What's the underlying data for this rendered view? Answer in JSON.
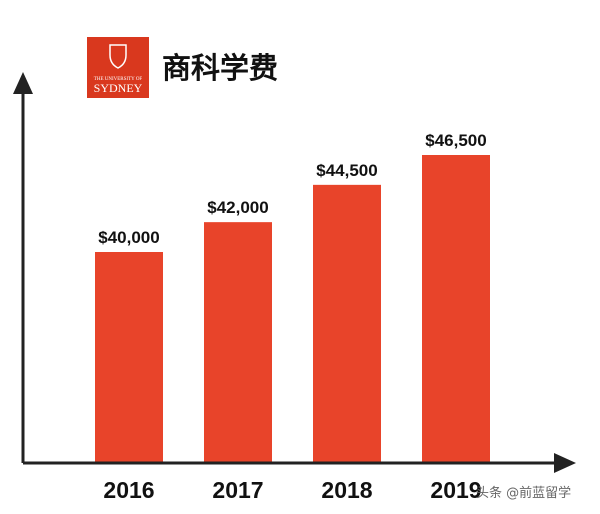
{
  "logo": {
    "caption": "THE UNIVERSITY OF",
    "name": "SYDNEY",
    "color": "#d9381e"
  },
  "watermark": "头条 @前蓝留学",
  "chart_data": {
    "type": "bar",
    "title": "商科学费",
    "categories": [
      "2016",
      "2017",
      "2018",
      "2019"
    ],
    "values": [
      40000,
      42000,
      44500,
      46500
    ],
    "value_labels": [
      "$40,000",
      "$42,000",
      "$44,500",
      "$46,500"
    ],
    "xlabel": "",
    "ylabel": "",
    "ylim": [
      0,
      50000
    ],
    "grid": false,
    "legend": "none",
    "bar_color": "#e8442a",
    "axis_color": "#222222"
  }
}
